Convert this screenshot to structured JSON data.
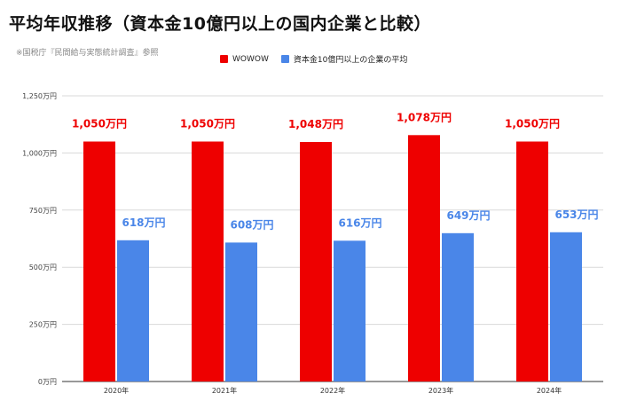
{
  "title": "平均年収推移（資本金10億円以上の国内企業と比較）",
  "source_note": "※国税庁『民間給与実態統計調査』参照",
  "chart_data": {
    "type": "bar",
    "categories": [
      "2020年",
      "2021年",
      "2022年",
      "2023年",
      "2024年"
    ],
    "series": [
      {
        "name": "WOWOW",
        "values": [
          1050,
          1050,
          1048,
          1078,
          1050
        ],
        "labels": [
          "1,050万円",
          "1,050万円",
          "1,048万円",
          "1,078万円",
          "1,050万円"
        ],
        "color": "#ee0000"
      },
      {
        "name": "資本金10億円以上の企業の平均",
        "values": [
          618,
          608,
          616,
          649,
          653
        ],
        "labels": [
          "618万円",
          "608万円",
          "616万円",
          "649万円",
          "653万円"
        ],
        "color": "#4a86e8"
      }
    ],
    "ylim": [
      0,
      1250
    ],
    "yticks": [
      0,
      250,
      500,
      750,
      1000,
      1250
    ],
    "ytick_labels": [
      "0万円",
      "250万円",
      "500万円",
      "750万円",
      "1,000万円",
      "1,250万円"
    ],
    "grid": true,
    "legend_position": "top"
  }
}
